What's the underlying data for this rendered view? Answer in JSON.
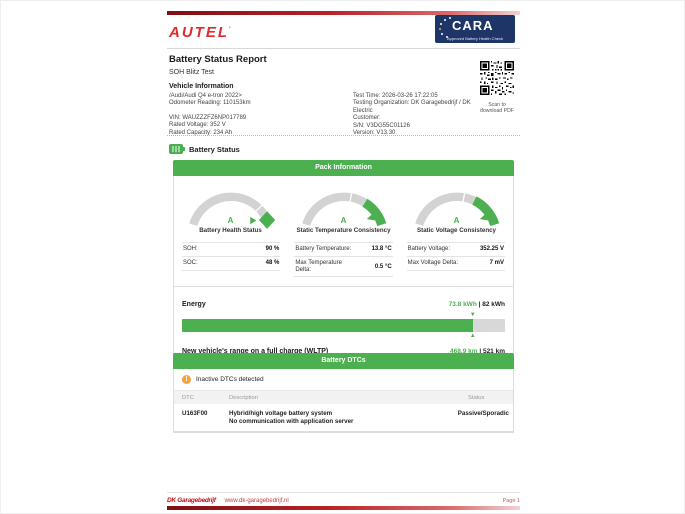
{
  "header": {
    "brand": "AUTEL",
    "cara": {
      "title": "CARA",
      "subtitle": "Approved Battery Health Check"
    }
  },
  "report": {
    "title": "Battery Status Report",
    "subtitle": "SOH Blitz Test"
  },
  "vehicle": {
    "heading": "Vehicle Information",
    "left": [
      "/Audi/Audi Q4 e-tron 2022>",
      "Odometer Reading: 110153km",
      "VIN: WAUZZZFZ6NP017789",
      "Rated Voltage: 352 V",
      "Rated Capacity: 234 Ah"
    ],
    "right": [
      "Test Time: 2026-03-26 17:22:05",
      "Testing Organization: DK Garagebedrijf / DK Electric",
      "Customer:",
      "S/N: V3DG55C01126",
      "Version: V13.30"
    ],
    "qr_caption": "Scan to download PDF"
  },
  "battery_status": {
    "section_title": "Battery Status",
    "pack_header": "Pack Information",
    "gauges": [
      {
        "grade": "A",
        "label": "Battery Health Status"
      },
      {
        "grade": "A",
        "label": "Static Temperature Consistency"
      },
      {
        "grade": "A",
        "label": "Static Voltage Consistency"
      }
    ],
    "stats": [
      [
        {
          "label": "SOH:",
          "value": "90 %"
        },
        {
          "label": "SOC:",
          "value": "48 %"
        }
      ],
      [
        {
          "label": "Battery Temperature:",
          "value": "13.8 °C"
        },
        {
          "label": "Max Temperature Delta:",
          "value": "0.5 °C"
        }
      ],
      [
        {
          "label": "Battery Voltage:",
          "value": "352.25 V"
        },
        {
          "label": "Max Voltage Delta:",
          "value": "7 mV"
        }
      ]
    ],
    "energy": {
      "label": "Energy",
      "current": "73.8 kWh",
      "separator": " | ",
      "total": "82 kWh",
      "percent": 90
    },
    "range": {
      "label": "New vehicle's range on a full charge (WLTP)",
      "current": "468.9 km",
      "separator": " | ",
      "total": "521 km"
    }
  },
  "dtc": {
    "header": "Battery DTCs",
    "notice": "Inactive DTCs detected",
    "warn_glyph": "!",
    "columns": {
      "code": "DTC",
      "description": "Description",
      "status": "Status"
    },
    "rows": [
      {
        "code": "U163F00",
        "description": [
          "Hybrid/high voltage battery system",
          "No communication with application server"
        ],
        "status": "Passive/Sporadic"
      }
    ]
  },
  "footer": {
    "logo": "DK Garagebedrijf",
    "url": "www.dk-garagebedrijf.nl",
    "page": "Page 1"
  },
  "colors": {
    "accent_green": "#4caf50",
    "autel_red": "#df2a2c",
    "cara_navy": "#1d3567",
    "warning_orange": "#f2a33c",
    "bar_gray": "#d8d8d8",
    "footer_red": "#c1121a"
  }
}
